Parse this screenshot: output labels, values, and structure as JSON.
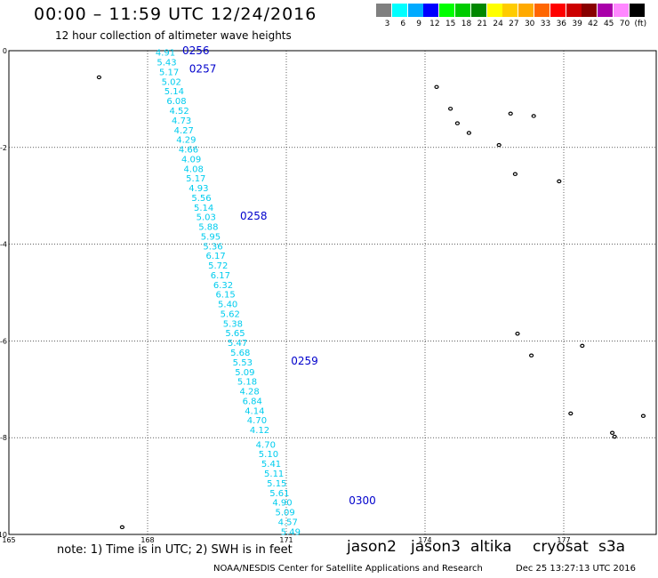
{
  "title": "00:00 – 11:59 UTC 12/24/2016",
  "subtitle": "12 hour collection of altimeter wave heights",
  "scale": {
    "labels": [
      "3",
      "6",
      "9",
      "12",
      "15",
      "18",
      "21",
      "24",
      "27",
      "30",
      "33",
      "36",
      "39",
      "42",
      "45",
      "70",
      "(ft)"
    ],
    "colors": [
      "#808080",
      "#00ffff",
      "#00aaff",
      "#0000ff",
      "#00ff00",
      "#00cc00",
      "#008800",
      "#ffff00",
      "#ffcc00",
      "#ffaa00",
      "#ff6600",
      "#ff0000",
      "#cc0000",
      "#880000",
      "#aa00aa",
      "#ff88ff",
      "#000000"
    ]
  },
  "axes": {
    "lon_ticks": [
      "165",
      "168",
      "171",
      "174",
      "177"
    ],
    "lat_ticks": [
      "0",
      "-2",
      "-4",
      "-6",
      "-8",
      "-10"
    ],
    "lon_range": [
      165,
      179
    ],
    "lat_range": [
      -10,
      0
    ]
  },
  "track_color": "#00ccee",
  "time_color": "#0000cc",
  "track": [
    {
      "lon": 168.17,
      "lat": -0.05,
      "v": "4.91"
    },
    {
      "lon": 168.2,
      "lat": -0.25,
      "v": "5.43"
    },
    {
      "lon": 168.25,
      "lat": -0.45,
      "v": "5.17"
    },
    {
      "lon": 168.3,
      "lat": -0.65,
      "v": "5.02"
    },
    {
      "lon": 168.36,
      "lat": -0.85,
      "v": "5.14"
    },
    {
      "lon": 168.41,
      "lat": -1.05,
      "v": "6.08"
    },
    {
      "lon": 168.47,
      "lat": -1.25,
      "v": "4.52"
    },
    {
      "lon": 168.52,
      "lat": -1.45,
      "v": "4.73"
    },
    {
      "lon": 168.57,
      "lat": -1.65,
      "v": "4.27"
    },
    {
      "lon": 168.62,
      "lat": -1.85,
      "v": "4.29"
    },
    {
      "lon": 168.67,
      "lat": -2.05,
      "v": "4.66"
    },
    {
      "lon": 168.73,
      "lat": -2.25,
      "v": "4.09"
    },
    {
      "lon": 168.78,
      "lat": -2.45,
      "v": "4.08"
    },
    {
      "lon": 168.83,
      "lat": -2.65,
      "v": "5.17"
    },
    {
      "lon": 168.89,
      "lat": -2.85,
      "v": "4.93"
    },
    {
      "lon": 168.95,
      "lat": -3.05,
      "v": "5.56"
    },
    {
      "lon": 169.0,
      "lat": -3.25,
      "v": "5.14"
    },
    {
      "lon": 169.05,
      "lat": -3.45,
      "v": "5.03"
    },
    {
      "lon": 169.1,
      "lat": -3.65,
      "v": "5.88"
    },
    {
      "lon": 169.15,
      "lat": -3.85,
      "v": "5.95"
    },
    {
      "lon": 169.2,
      "lat": -4.05,
      "v": "5.36"
    },
    {
      "lon": 169.26,
      "lat": -4.25,
      "v": "6.17"
    },
    {
      "lon": 169.31,
      "lat": -4.45,
      "v": "5.72"
    },
    {
      "lon": 169.36,
      "lat": -4.65,
      "v": "6.17"
    },
    {
      "lon": 169.42,
      "lat": -4.85,
      "v": "6.32"
    },
    {
      "lon": 169.47,
      "lat": -5.05,
      "v": "6.15"
    },
    {
      "lon": 169.52,
      "lat": -5.25,
      "v": "5.40"
    },
    {
      "lon": 169.57,
      "lat": -5.45,
      "v": "5.62"
    },
    {
      "lon": 169.63,
      "lat": -5.65,
      "v": "5.38"
    },
    {
      "lon": 169.68,
      "lat": -5.85,
      "v": "5.65"
    },
    {
      "lon": 169.73,
      "lat": -6.05,
      "v": "5.47"
    },
    {
      "lon": 169.79,
      "lat": -6.25,
      "v": "5.68"
    },
    {
      "lon": 169.84,
      "lat": -6.45,
      "v": "5.53"
    },
    {
      "lon": 169.89,
      "lat": -6.65,
      "v": "5.09"
    },
    {
      "lon": 169.94,
      "lat": -6.85,
      "v": "5.18"
    },
    {
      "lon": 169.99,
      "lat": -7.05,
      "v": "4.28"
    },
    {
      "lon": 170.05,
      "lat": -7.25,
      "v": "6.84"
    },
    {
      "lon": 170.1,
      "lat": -7.45,
      "v": "4.14"
    },
    {
      "lon": 170.15,
      "lat": -7.65,
      "v": "4.70"
    },
    {
      "lon": 170.21,
      "lat": -7.85,
      "v": "4.12"
    },
    {
      "lon": 170.34,
      "lat": -8.15,
      "v": "4.70"
    },
    {
      "lon": 170.4,
      "lat": -8.35,
      "v": "5.10"
    },
    {
      "lon": 170.46,
      "lat": -8.55,
      "v": "5.41"
    },
    {
      "lon": 170.52,
      "lat": -8.75,
      "v": "5.11"
    },
    {
      "lon": 170.58,
      "lat": -8.95,
      "v": "5.15"
    },
    {
      "lon": 170.64,
      "lat": -9.15,
      "v": "5.61"
    },
    {
      "lon": 170.7,
      "lat": -9.35,
      "v": "4.90"
    },
    {
      "lon": 170.76,
      "lat": -9.55,
      "v": "5.09"
    },
    {
      "lon": 170.82,
      "lat": -9.75,
      "v": "4.57"
    },
    {
      "lon": 170.88,
      "lat": -9.95,
      "v": "5.49"
    }
  ],
  "times": [
    {
      "lon": 168.75,
      "lat": 0.0,
      "label": "0256"
    },
    {
      "lon": 168.9,
      "lat": -0.38,
      "label": "0257"
    },
    {
      "lon": 170.0,
      "lat": -3.42,
      "label": "0258"
    },
    {
      "lon": 171.1,
      "lat": -6.42,
      "label": "0259"
    },
    {
      "lon": 172.35,
      "lat": -9.3,
      "label": "0300"
    }
  ],
  "islands": [
    {
      "lon": 166.95,
      "lat": -0.55
    },
    {
      "lon": 174.25,
      "lat": -0.75
    },
    {
      "lon": 174.55,
      "lat": -1.2
    },
    {
      "lon": 174.7,
      "lat": -1.5
    },
    {
      "lon": 174.95,
      "lat": -1.7
    },
    {
      "lon": 175.85,
      "lat": -1.3
    },
    {
      "lon": 176.35,
      "lat": -1.35
    },
    {
      "lon": 175.6,
      "lat": -1.95
    },
    {
      "lon": 175.95,
      "lat": -2.55
    },
    {
      "lon": 176.9,
      "lat": -2.7
    },
    {
      "lon": 176.0,
      "lat": -5.85
    },
    {
      "lon": 176.3,
      "lat": -6.3
    },
    {
      "lon": 177.4,
      "lat": -6.1
    },
    {
      "lon": 177.15,
      "lat": -7.5
    },
    {
      "lon": 178.05,
      "lat": -7.9
    },
    {
      "lon": 178.1,
      "lat": -7.98
    },
    {
      "lon": 178.72,
      "lat": -7.55
    },
    {
      "lon": 167.45,
      "lat": -9.85
    }
  ],
  "footer": {
    "note": "note: 1) Time is in UTC; 2) SWH is in feet",
    "satellites": [
      {
        "name": "jason2",
        "color": "#0000ee"
      },
      {
        "name": "jason3",
        "color": "#00aa00"
      },
      {
        "name": "altika",
        "color": "#ff9900"
      },
      {
        "name": "cryosat",
        "color": "#cc0000"
      },
      {
        "name": "s3a",
        "color": "#990000"
      }
    ],
    "credit": "NOAA/NESDIS Center for Satellite Applications and Research",
    "timestamp": "Dec 25 13:27:13 UTC 2016"
  }
}
